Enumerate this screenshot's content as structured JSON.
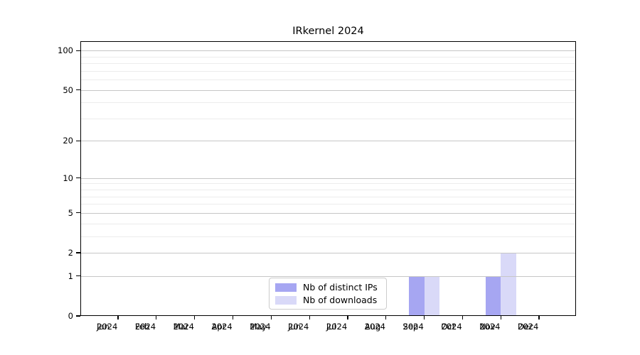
{
  "chart_data": {
    "type": "bar",
    "title": "IRkernel 2024",
    "categories": [
      "Jan 2024",
      "Feb 2024",
      "Mar 2024",
      "Apr 2024",
      "May 2024",
      "Jun 2024",
      "Jul 2024",
      "Aug 2024",
      "Sep 2024",
      "Oct 2024",
      "Nov 2024",
      "Dec 2024"
    ],
    "series": [
      {
        "name": "Nb of distinct IPs",
        "color": "#a6a6f2",
        "values": [
          0,
          0,
          0,
          0,
          0,
          0,
          0,
          0,
          1,
          0,
          1,
          0
        ]
      },
      {
        "name": "Nb of downloads",
        "color": "#d9d9f8",
        "values": [
          0,
          0,
          0,
          0,
          0,
          0,
          0,
          0,
          1,
          0,
          2,
          0
        ]
      }
    ],
    "xlabel": "",
    "ylabel": "",
    "y_scale": "log1p",
    "y_ticks_major": [
      0,
      1,
      2,
      5,
      10,
      20,
      50,
      100
    ],
    "y_ticks_minor": [
      3,
      4,
      6,
      7,
      8,
      9,
      30,
      40,
      60,
      70,
      80,
      90
    ],
    "ylim": [
      0,
      118
    ],
    "grid": true,
    "legend_position": "lower center",
    "colors": {
      "grid_major": "#c6c6c6",
      "grid_minor": "#ececec",
      "axis": "#000000",
      "background": "#ffffff"
    }
  }
}
